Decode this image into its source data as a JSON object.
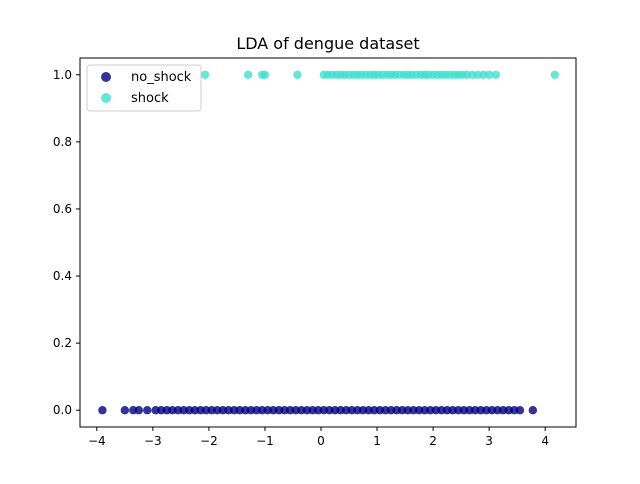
{
  "chart_data": {
    "type": "scatter",
    "title": "LDA of dengue dataset",
    "xlabel": "",
    "ylabel": "",
    "xlim": [
      -4.3,
      4.55
    ],
    "ylim": [
      -0.05,
      1.05
    ],
    "xticks": [
      -4,
      -3,
      -2,
      -1,
      0,
      1,
      2,
      3,
      4
    ],
    "xtick_labels": [
      "−4",
      "−3",
      "−2",
      "−1",
      "0",
      "1",
      "2",
      "3",
      "4"
    ],
    "yticks": [
      0.0,
      0.2,
      0.4,
      0.6,
      0.8,
      1.0
    ],
    "ytick_labels": [
      "0.0",
      "0.2",
      "0.4",
      "0.6",
      "0.8",
      "1.0"
    ],
    "grid": false,
    "legend": {
      "placement": "top-left"
    },
    "series": [
      {
        "name": "no_shock",
        "color": "#000080",
        "alpha": 0.8,
        "y": 0,
        "x": [
          -3.9,
          -3.5,
          -3.35,
          -3.25,
          -3.1,
          -2.95,
          -2.85,
          -2.75,
          -2.65,
          -2.55,
          -2.45,
          -2.35,
          -2.25,
          -2.15,
          -2.05,
          -1.95,
          -1.85,
          -1.75,
          -1.65,
          -1.55,
          -1.45,
          -1.35,
          -1.25,
          -1.15,
          -1.05,
          -0.95,
          -0.85,
          -0.75,
          -0.65,
          -0.55,
          -0.45,
          -0.35,
          -0.25,
          -0.15,
          -0.05,
          0.05,
          0.15,
          0.25,
          0.35,
          0.45,
          0.55,
          0.65,
          0.75,
          0.85,
          0.95,
          1.05,
          1.15,
          1.25,
          1.35,
          1.45,
          1.55,
          1.65,
          1.75,
          1.85,
          1.95,
          2.05,
          2.15,
          2.25,
          2.35,
          2.45,
          2.55,
          2.65,
          2.75,
          2.85,
          2.95,
          3.05,
          3.15,
          3.25,
          3.35,
          3.45,
          3.55,
          3.78
        ]
      },
      {
        "name": "shock",
        "color": "#40e0d0",
        "alpha": 0.8,
        "y": 1,
        "x": [
          -2.07,
          -1.3,
          -1.05,
          -1.0,
          -0.42,
          0.05,
          0.12,
          0.2,
          0.28,
          0.35,
          0.42,
          0.5,
          0.58,
          0.65,
          0.72,
          0.8,
          0.88,
          0.95,
          1.02,
          1.1,
          1.18,
          1.25,
          1.32,
          1.4,
          1.48,
          1.55,
          1.62,
          1.7,
          1.78,
          1.85,
          1.92,
          2.0,
          2.08,
          2.15,
          2.22,
          2.3,
          2.38,
          2.45,
          2.52,
          2.6,
          2.7,
          2.8,
          2.9,
          3.0,
          3.12,
          4.17
        ]
      }
    ]
  }
}
